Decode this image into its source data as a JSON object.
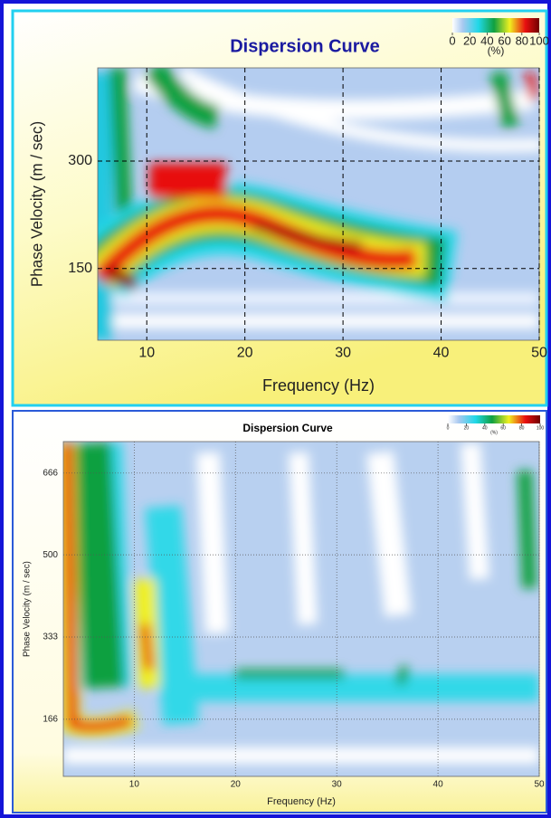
{
  "chart_data": [
    {
      "type": "heatmap",
      "title": "Dispersion Curve",
      "xlabel": "Frequency (Hz)",
      "ylabel": "Phase Velocity (m / sec)",
      "xlim": [
        5,
        50
      ],
      "xticks": [
        10,
        20,
        30,
        40,
        50
      ],
      "ylim": [
        50,
        430
      ],
      "yticks": [
        150,
        300
      ],
      "grid": true,
      "colorbar_label": "(%)",
      "colorbar_lim": [
        0,
        100
      ],
      "colorbar_ticks": [
        0,
        20,
        40,
        60,
        80,
        100
      ]
    },
    {
      "type": "heatmap",
      "title": "Dispersion Curve",
      "xlabel": "Frequency (Hz)",
      "ylabel": "Phase Velocity (m / sec)",
      "xlim": [
        3,
        50
      ],
      "xticks": [
        10,
        20,
        30,
        40,
        50
      ],
      "ylim": [
        50,
        730
      ],
      "yticks": [
        166,
        333,
        500,
        666
      ],
      "grid": true,
      "colorbar_label": "(%)",
      "colorbar_lim": [
        0,
        100
      ],
      "colorbar_ticks": [
        0,
        20,
        40,
        60,
        80,
        100
      ]
    }
  ]
}
